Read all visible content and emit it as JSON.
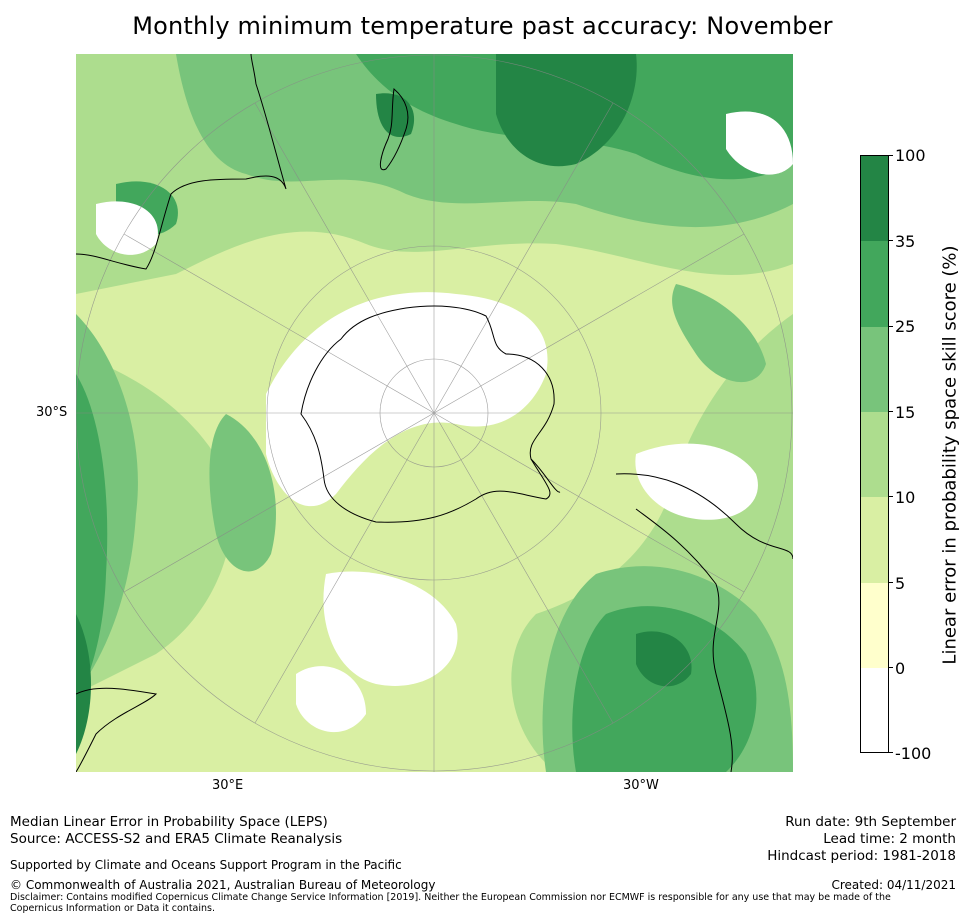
{
  "title": "Monthly minimum temperature past accuracy: November",
  "map": {
    "axis_labels": {
      "left": "30°S",
      "bottom_left": "30°E",
      "bottom_right": "30°W"
    }
  },
  "colorbar": {
    "title": "Linear error in probability space skill score (%)",
    "tick_labels": [
      "100",
      "35",
      "25",
      "15",
      "10",
      "5",
      "0",
      "-100"
    ],
    "bins": [
      {
        "range": "35 to 100",
        "color": "#238545"
      },
      {
        "range": "25 to 35",
        "color": "#42a75c"
      },
      {
        "range": "15 to 25",
        "color": "#78c47b"
      },
      {
        "range": "10 to 15",
        "color": "#addd8e"
      },
      {
        "range": "5 to 10",
        "color": "#d9efa3"
      },
      {
        "range": "0 to 5",
        "color": "#ffffcc"
      },
      {
        "range": "-100 to 0",
        "color": "#ffffff"
      }
    ]
  },
  "footer": {
    "left_line1": "Median Linear Error in Probability Space (LEPS)",
    "left_line2": "Source: ACCESS-S2 and ERA5 Climate Reanalysis",
    "support": "Supported by Climate and Oceans Support Program in the Pacific",
    "copyright": "© Commonwealth of Australia 2021, Australian Bureau of Meteorology",
    "disclaimer": "Disclaimer: Contains modified Copernicus Climate Change Service Information [2019]. Neither the European Commission nor ECMWF is responsible for any use that may be made of the Copernicus Information or Data it contains.",
    "run_date": "Run date: 9th September",
    "lead_time": "Lead time: 2 month",
    "hindcast": "Hindcast period: 1981-2018",
    "created": "Created: 04/11/2021"
  }
}
